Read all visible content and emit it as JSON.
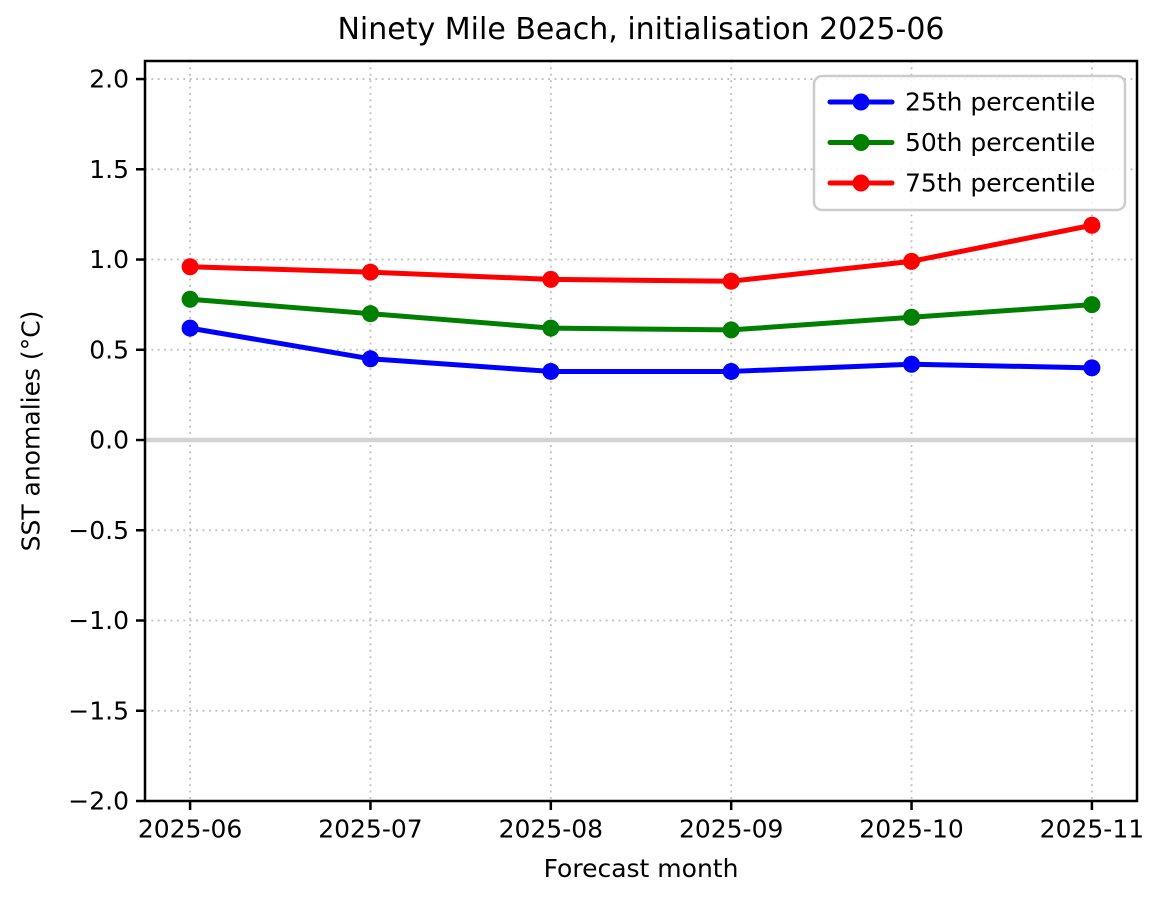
{
  "chart_data": {
    "type": "line",
    "title": "Ninety Mile Beach, initialisation 2025-06",
    "xlabel": "Forecast month",
    "ylabel": "SST anomalies (°C)",
    "categories": [
      "2025-06",
      "2025-07",
      "2025-08",
      "2025-09",
      "2025-10",
      "2025-11"
    ],
    "series": [
      {
        "name": "25th percentile",
        "color": "#0000ff",
        "values": [
          0.62,
          0.45,
          0.38,
          0.38,
          0.42,
          0.4
        ]
      },
      {
        "name": "50th percentile",
        "color": "#008000",
        "values": [
          0.78,
          0.7,
          0.62,
          0.61,
          0.68,
          0.75
        ]
      },
      {
        "name": "75th percentile",
        "color": "#ff0000",
        "values": [
          0.96,
          0.93,
          0.89,
          0.88,
          0.99,
          1.19
        ]
      }
    ],
    "ylim": [
      -2.0,
      2.1
    ],
    "yticks": {
      "values": [
        2.0,
        1.5,
        1.0,
        0.5,
        0.0,
        -0.5,
        -1.0,
        -1.5,
        -2.0
      ],
      "labels": [
        "2.0",
        "1.5",
        "1.0",
        "0.5",
        "0.0",
        "−0.5",
        "−1.0",
        "−1.5",
        "−2.0"
      ]
    },
    "grid": true,
    "legend_position": "upper right",
    "zero_line": {
      "value": 0.0,
      "color": "#d3d3d3"
    },
    "colors": {
      "grid": "#b0b0b0",
      "axes": "#000000",
      "legend_border": "#cccccc",
      "background": "#ffffff",
      "text": "#000000"
    }
  }
}
